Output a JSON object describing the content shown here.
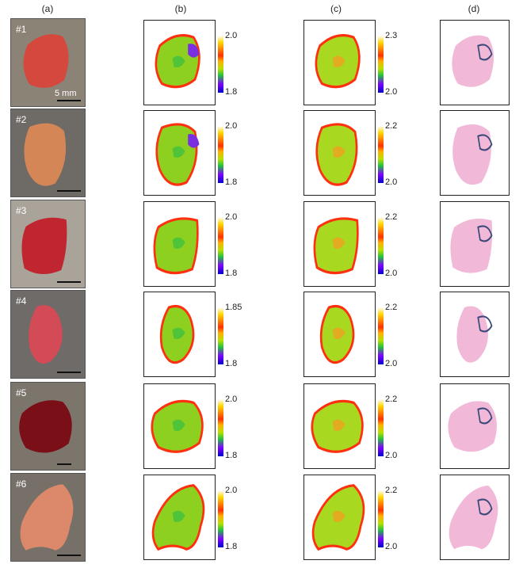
{
  "columns": [
    "(a)",
    "(b)",
    "(c)",
    "(d)"
  ],
  "scale_bar_label": "5 mm",
  "rows": [
    {
      "id": "#1",
      "b_max": "2.0",
      "b_min": "1.8",
      "c_max": "2.3",
      "c_min": "2.0"
    },
    {
      "id": "#2",
      "b_max": "2.0",
      "b_min": "1.8",
      "c_max": "2.2",
      "c_min": "2.0"
    },
    {
      "id": "#3",
      "b_max": "2.0",
      "b_min": "1.8",
      "c_max": "2.2",
      "c_min": "2.0"
    },
    {
      "id": "#4",
      "b_max": "1.85",
      "b_min": "1.8",
      "c_max": "2.2",
      "c_min": "2.0"
    },
    {
      "id": "#5",
      "b_max": "2.0",
      "b_min": "1.8",
      "c_max": "2.2",
      "c_min": "2.0"
    },
    {
      "id": "#6",
      "b_max": "2.0",
      "b_min": "1.8",
      "c_max": "2.2",
      "c_min": "2.0"
    }
  ],
  "colors": {
    "photo_bg": "#8a8378",
    "he_tissue": "#f2b8d8",
    "tumor_outline": "#3a4a7a"
  }
}
